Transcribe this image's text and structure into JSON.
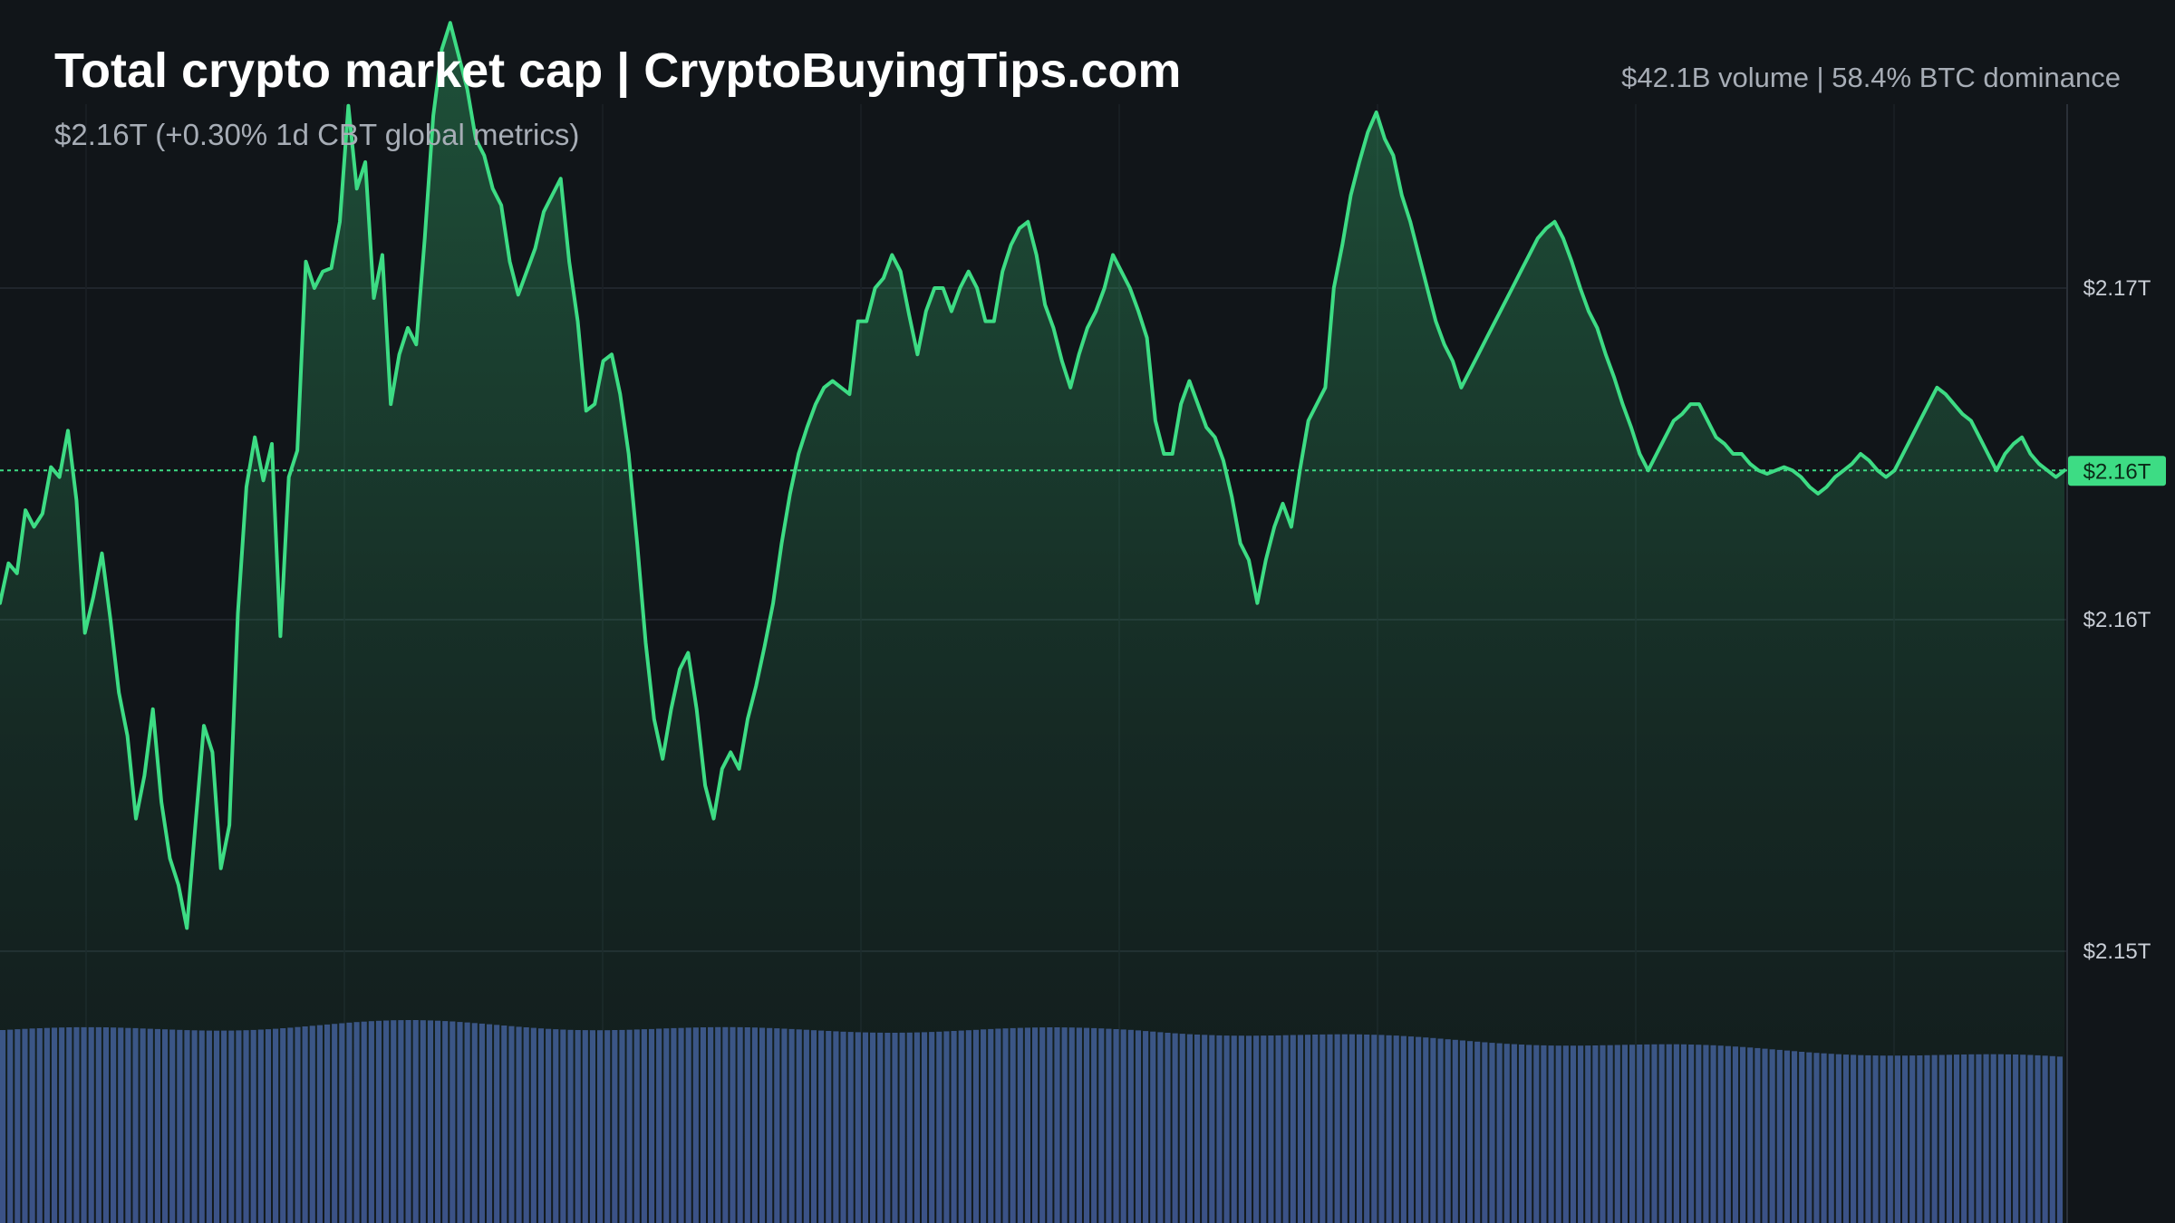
{
  "header": {
    "title": "Total crypto market cap | CryptoBuyingTips.com",
    "subtitle": "$2.16T (+0.30% 1d CBT global metrics)",
    "stats": "$42.1B volume | 58.4% BTC dominance"
  },
  "colors": {
    "background": "#111519",
    "line": "#3ddc84",
    "volume": "#3b4f86",
    "grid": "#252b33",
    "badge": "#3ddc84"
  },
  "chart_data": {
    "type": "area",
    "title": "Total crypto market cap | CryptoBuyingTips.com",
    "x_label": "",
    "y_label": "",
    "grid": true,
    "y_axis": {
      "position": "right",
      "range_T": [
        2.149,
        2.1755
      ],
      "ticks": [
        {
          "value": 2.17,
          "label": "$2.17T"
        },
        {
          "value": 2.16,
          "label": "$2.16T"
        },
        {
          "value": 2.15,
          "label": "$2.15T"
        }
      ]
    },
    "current": {
      "value": 2.1645,
      "label": "$2.16T"
    },
    "market_cap_T": [
      2.1605,
      2.1617,
      2.1614,
      2.1633,
      2.1628,
      2.1632,
      2.1646,
      2.1643,
      2.1657,
      2.1636,
      2.1596,
      2.1607,
      2.162,
      2.16,
      2.1578,
      2.1565,
      2.154,
      2.1553,
      2.1573,
      2.1545,
      2.1528,
      2.152,
      2.1507,
      2.1538,
      2.1568,
      2.156,
      2.1525,
      2.1538,
      2.1602,
      2.164,
      2.1655,
      2.1642,
      2.1653,
      2.1595,
      2.1643,
      2.1651,
      2.1708,
      2.17,
      2.1705,
      2.1706,
      2.172,
      2.1755,
      2.173,
      2.1738,
      2.1697,
      2.171,
      2.1665,
      2.168,
      2.1688,
      2.1683,
      2.1715,
      2.1752,
      2.1772,
      2.178,
      2.177,
      2.176,
      2.1745,
      2.174,
      2.173,
      2.1725,
      2.1708,
      2.1698,
      2.1705,
      2.1712,
      2.1723,
      2.1728,
      2.1733,
      2.1708,
      2.169,
      2.1663,
      2.1665,
      2.1678,
      2.168,
      2.1668,
      2.165,
      2.1623,
      2.1593,
      2.157,
      2.1558,
      2.1573,
      2.1585,
      2.159,
      2.1573,
      2.155,
      2.154,
      2.1555,
      2.156,
      2.1555,
      2.157,
      2.158,
      2.1592,
      2.1605,
      2.1623,
      2.1638,
      2.165,
      2.1658,
      2.1665,
      2.167,
      2.1672,
      2.167,
      2.1668,
      2.169,
      2.169,
      2.17,
      2.1703,
      2.171,
      2.1705,
      2.1692,
      2.168,
      2.1693,
      2.17,
      2.17,
      2.1693,
      2.17,
      2.1705,
      2.17,
      2.169,
      2.169,
      2.1705,
      2.1713,
      2.1718,
      2.172,
      2.171,
      2.1695,
      2.1688,
      2.1678,
      2.167,
      2.168,
      2.1688,
      2.1693,
      2.17,
      2.171,
      2.1705,
      2.17,
      2.1693,
      2.1685,
      2.166,
      2.165,
      2.165,
      2.1665,
      2.1672,
      2.1665,
      2.1658,
      2.1655,
      2.1648,
      2.1637,
      2.1623,
      2.1618,
      2.1605,
      2.1618,
      2.1628,
      2.1635,
      2.1628,
      2.1645,
      2.166,
      2.1665,
      2.167,
      2.17,
      2.1713,
      2.1728,
      2.1738,
      2.1747,
      2.1753,
      2.1745,
      2.174,
      2.1728,
      2.172,
      2.171,
      2.17,
      2.169,
      2.1683,
      2.1678,
      2.167,
      2.1675,
      2.168,
      2.1685,
      2.169,
      2.1695,
      2.17,
      2.1705,
      2.171,
      2.1715,
      2.1718,
      2.172,
      2.1715,
      2.1708,
      2.17,
      2.1693,
      2.1688,
      2.168,
      2.1673,
      2.1665,
      2.1658,
      2.165,
      2.1645,
      2.165,
      2.1655,
      2.166,
      2.1662,
      2.1665,
      2.1665,
      2.166,
      2.1655,
      2.1653,
      2.165,
      2.165,
      2.1647,
      2.1645,
      2.1644,
      2.1645,
      2.1646,
      2.1645,
      2.1643,
      2.164,
      2.1638,
      2.164,
      2.1643,
      2.1645,
      2.1647,
      2.165,
      2.1648,
      2.1645,
      2.1643,
      2.1645,
      2.165,
      2.1655,
      2.166,
      2.1665,
      2.167,
      2.1668,
      2.1665,
      2.1662,
      2.166,
      2.1655,
      2.165,
      2.1645,
      2.165,
      2.1653,
      2.1655,
      2.165,
      2.1647,
      2.1645,
      2.1643,
      2.1645
    ]
  }
}
